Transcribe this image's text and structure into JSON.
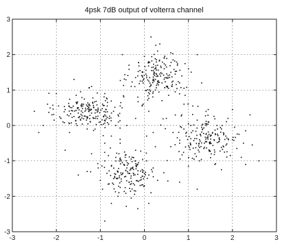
{
  "chart_data": {
    "type": "scatter",
    "title": "4psk 7dB output of volterra channel",
    "xlabel": "",
    "ylabel": "",
    "xlim": [
      -3,
      3
    ],
    "ylim": [
      -3,
      3
    ],
    "xticks": [
      "-3",
      "-2",
      "-1",
      "0",
      "1",
      "2",
      "3"
    ],
    "yticks": [
      "3",
      "2",
      "1",
      "0",
      "-1",
      "-2",
      "-3"
    ],
    "grid": true,
    "clusters": [
      {
        "center": [
          -1.25,
          0.4
        ],
        "spread": [
          0.38,
          0.26
        ],
        "count": 160
      },
      {
        "center": [
          0.3,
          1.4
        ],
        "spread": [
          0.3,
          0.32
        ],
        "count": 150
      },
      {
        "center": [
          1.4,
          -0.35
        ],
        "spread": [
          0.38,
          0.34
        ],
        "count": 150
      },
      {
        "center": [
          -0.35,
          -1.3
        ],
        "spread": [
          0.3,
          0.3
        ],
        "count": 140
      }
    ],
    "series": [
      {
        "points": [
          [
            -2.2,
            0.6
          ],
          [
            -2.1,
            0.3
          ],
          [
            -2.05,
            0.15
          ],
          [
            -1.95,
            0.55
          ],
          [
            -1.9,
            0.2
          ],
          [
            -1.85,
            0.1
          ],
          [
            -1.8,
            0.45
          ],
          [
            -1.75,
            0.3
          ],
          [
            -1.7,
            0.05
          ],
          [
            -1.65,
            0.5
          ],
          [
            -1.6,
            0.25
          ],
          [
            -1.55,
            0.65
          ],
          [
            -1.5,
            0.35
          ],
          [
            -1.45,
            0.15
          ],
          [
            -1.4,
            0.55
          ],
          [
            -1.35,
            0.4
          ],
          [
            -1.3,
            0.2
          ],
          [
            -1.25,
            0.6
          ],
          [
            -1.2,
            0.35
          ],
          [
            -1.15,
            0.5
          ],
          [
            -1.1,
            0.25
          ],
          [
            -1.05,
            0.45
          ],
          [
            -1.0,
            0.1
          ],
          [
            -0.95,
            0.6
          ],
          [
            -0.9,
            0.3
          ],
          [
            -0.85,
            0.75
          ],
          [
            -0.8,
            0.2
          ],
          [
            -0.7,
            0.4
          ],
          [
            -0.65,
            0.0
          ],
          [
            -1.55,
            0.85
          ],
          [
            -1.45,
            0.95
          ],
          [
            -1.2,
            1.1
          ],
          [
            -0.9,
            0.9
          ],
          [
            -2.3,
            0.0
          ],
          [
            -2.5,
            0.4
          ],
          [
            -1.7,
            -0.2
          ],
          [
            -1.3,
            -0.1
          ],
          [
            -0.75,
            -0.3
          ],
          [
            -0.55,
            0.55
          ],
          [
            -2.0,
            0.9
          ],
          [
            0.1,
            1.8
          ],
          [
            0.2,
            1.55
          ],
          [
            0.25,
            1.3
          ],
          [
            0.3,
            1.7
          ],
          [
            0.35,
            1.45
          ],
          [
            0.4,
            1.2
          ],
          [
            0.45,
            1.6
          ],
          [
            0.5,
            1.35
          ],
          [
            0.55,
            1.05
          ],
          [
            0.6,
            1.5
          ],
          [
            0.65,
            1.25
          ],
          [
            0.7,
            0.95
          ],
          [
            0.15,
            1.15
          ],
          [
            0.05,
            1.4
          ],
          [
            -0.05,
            1.25
          ],
          [
            -0.1,
            1.55
          ],
          [
            -0.2,
            1.35
          ],
          [
            0.0,
            1.95
          ],
          [
            0.3,
            2.1
          ],
          [
            0.45,
            1.9
          ],
          [
            0.75,
            1.7
          ],
          [
            0.85,
            1.4
          ],
          [
            0.9,
            1.05
          ],
          [
            0.55,
            0.85
          ],
          [
            0.2,
            0.95
          ],
          [
            -0.15,
            0.8
          ],
          [
            -0.3,
            1.1
          ],
          [
            0.35,
            2.3
          ],
          [
            0.6,
            2.05
          ],
          [
            0.8,
            1.2
          ],
          [
            -0.05,
            0.55
          ],
          [
            0.4,
            0.7
          ],
          [
            1.0,
            1.6
          ],
          [
            0.15,
            2.5
          ],
          [
            -0.35,
            1.7
          ],
          [
            0.65,
            1.85
          ],
          [
            0.25,
            1.0
          ],
          [
            0.5,
            1.65
          ],
          [
            0.1,
            1.25
          ],
          [
            0.7,
            1.45
          ],
          [
            0.95,
            -0.3
          ],
          [
            1.0,
            0.05
          ],
          [
            1.05,
            -0.55
          ],
          [
            1.1,
            -0.15
          ],
          [
            1.15,
            -0.8
          ],
          [
            1.2,
            0.15
          ],
          [
            1.25,
            -0.4
          ],
          [
            1.3,
            -0.05
          ],
          [
            1.35,
            -0.65
          ],
          [
            1.4,
            -0.25
          ],
          [
            1.45,
            0.1
          ],
          [
            1.5,
            -0.5
          ],
          [
            1.55,
            -0.2
          ],
          [
            1.6,
            -0.75
          ],
          [
            1.65,
            0.0
          ],
          [
            1.7,
            -0.45
          ],
          [
            1.75,
            -0.1
          ],
          [
            1.8,
            -0.6
          ],
          [
            1.85,
            -0.3
          ],
          [
            1.9,
            0.2
          ],
          [
            1.95,
            -0.85
          ],
          [
            2.0,
            -0.4
          ],
          [
            2.05,
            -0.05
          ],
          [
            2.1,
            -0.65
          ],
          [
            2.15,
            -0.25
          ],
          [
            2.2,
            -0.9
          ],
          [
            2.25,
            -0.5
          ],
          [
            2.3,
            -0.15
          ],
          [
            1.25,
            -1.0
          ],
          [
            1.6,
            -1.1
          ],
          [
            0.8,
            -0.5
          ],
          [
            0.85,
            0.3
          ],
          [
            1.0,
            -1.15
          ],
          [
            2.45,
            -0.55
          ],
          [
            2.0,
            0.45
          ],
          [
            1.45,
            0.45
          ],
          [
            0.65,
            -0.2
          ],
          [
            1.75,
            -1.25
          ],
          [
            2.3,
            -1.1
          ],
          [
            1.1,
            0.55
          ],
          [
            -0.9,
            -1.0
          ],
          [
            -0.85,
            -1.35
          ],
          [
            -0.8,
            -1.65
          ],
          [
            -0.75,
            -1.15
          ],
          [
            -0.7,
            -1.5
          ],
          [
            -0.65,
            -0.9
          ],
          [
            -0.6,
            -1.3
          ],
          [
            -0.55,
            -1.75
          ],
          [
            -0.5,
            -1.05
          ],
          [
            -0.45,
            -1.45
          ],
          [
            -0.4,
            -1.2
          ],
          [
            -0.35,
            -1.6
          ],
          [
            -0.3,
            -0.95
          ],
          [
            -0.25,
            -1.35
          ],
          [
            -0.2,
            -1.85
          ],
          [
            -0.15,
            -1.1
          ],
          [
            -0.1,
            -1.55
          ],
          [
            -0.05,
            -1.25
          ],
          [
            0.0,
            -1.7
          ],
          [
            0.05,
            -1.0
          ],
          [
            0.1,
            -1.4
          ],
          [
            0.15,
            -1.9
          ],
          [
            -1.0,
            -1.55
          ],
          [
            -1.05,
            -1.2
          ],
          [
            -0.95,
            -1.8
          ],
          [
            -0.6,
            -2.0
          ],
          [
            -0.3,
            -2.05
          ],
          [
            0.2,
            -1.2
          ],
          [
            -0.45,
            -0.75
          ],
          [
            -0.2,
            -0.7
          ],
          [
            0.3,
            -1.55
          ],
          [
            -1.2,
            -0.8
          ],
          [
            -0.75,
            -2.2
          ],
          [
            -0.9,
            -2.7
          ],
          [
            0.25,
            -0.6
          ],
          [
            -1.3,
            -1.3
          ],
          [
            0.1,
            -2.2
          ],
          [
            -0.55,
            -0.5
          ],
          [
            0.05,
            -0.3
          ],
          [
            -0.15,
            -2.35
          ],
          [
            -0.2,
            0.2
          ],
          [
            0.1,
            0.4
          ],
          [
            0.5,
            0.2
          ],
          [
            -0.4,
            0.0
          ],
          [
            0.2,
            -0.2
          ],
          [
            -0.6,
            0.3
          ],
          [
            0.6,
            -0.6
          ],
          [
            -0.9,
            -0.5
          ],
          [
            0.9,
            0.6
          ],
          [
            -1.6,
            1.3
          ],
          [
            1.3,
            1.2
          ],
          [
            2.4,
            0.3
          ],
          [
            -2.4,
            -0.2
          ],
          [
            -1.8,
            -0.7
          ],
          [
            -1.5,
            -1.4
          ],
          [
            0.8,
            -1.6
          ],
          [
            1.2,
            -1.8
          ],
          [
            2.6,
            -1.0
          ],
          [
            -0.5,
            2.0
          ],
          [
            1.2,
            2.0
          ]
        ]
      }
    ]
  }
}
